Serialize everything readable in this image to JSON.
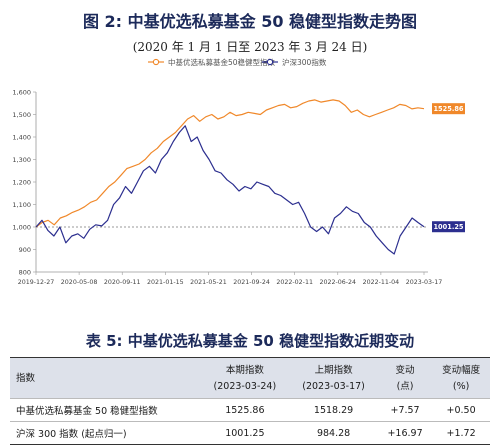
{
  "figure": {
    "title": "图 2:  中基优选私募基金 50 稳健型指数走势图",
    "subtitle": "(2020 年 1 月 1 日至 2023 年 3 月 24 日)"
  },
  "chart_data": {
    "type": "line",
    "legend_position": "top",
    "y_ticks": [
      "800",
      "900",
      "1,000",
      "1,100",
      "1,200",
      "1,300",
      "1,400",
      "1,500",
      "1,600"
    ],
    "ylim": [
      800,
      1600
    ],
    "x_ticks": [
      "2019-12-27",
      "2020-05-08",
      "2020-09-11",
      "2021-01-15",
      "2021-05-21",
      "2021-09-24",
      "2022-02-11",
      "2022-06-24",
      "2022-11-04",
      "2023-03-17"
    ],
    "baseline": 1000,
    "series": [
      {
        "name": "中基优选私募基金50稳健型指数",
        "color": "#f0882a",
        "end_label": "1525.86",
        "values": [
          1000,
          1020,
          1030,
          1010,
          1040,
          1050,
          1065,
          1075,
          1090,
          1110,
          1120,
          1150,
          1180,
          1200,
          1230,
          1260,
          1270,
          1280,
          1300,
          1330,
          1350,
          1380,
          1400,
          1420,
          1450,
          1480,
          1495,
          1470,
          1490,
          1500,
          1480,
          1490,
          1510,
          1495,
          1500,
          1510,
          1505,
          1500,
          1520,
          1530,
          1540,
          1545,
          1530,
          1535,
          1550,
          1560,
          1565,
          1555,
          1560,
          1565,
          1560,
          1540,
          1510,
          1520,
          1500,
          1490,
          1500,
          1510,
          1520,
          1530,
          1545,
          1540,
          1525,
          1530,
          1525.86
        ]
      },
      {
        "name": "沪深300指数",
        "color": "#2c2f8f",
        "end_label": "1001.25",
        "values": [
          1000,
          1030,
          985,
          960,
          1000,
          930,
          960,
          970,
          950,
          990,
          1010,
          1005,
          1030,
          1100,
          1130,
          1180,
          1150,
          1200,
          1250,
          1270,
          1240,
          1300,
          1330,
          1380,
          1420,
          1450,
          1380,
          1400,
          1340,
          1300,
          1250,
          1240,
          1210,
          1190,
          1160,
          1180,
          1170,
          1200,
          1190,
          1180,
          1150,
          1140,
          1120,
          1100,
          1110,
          1060,
          1000,
          980,
          1000,
          970,
          1040,
          1060,
          1090,
          1070,
          1060,
          1020,
          1000,
          960,
          930,
          900,
          880,
          960,
          1000,
          1040,
          1020,
          1001.25
        ]
      }
    ]
  },
  "table": {
    "title": "表 5:  中基优选私募基金 50 稳健型指数近期变动",
    "headers": [
      {
        "line1": "指数",
        "line2": ""
      },
      {
        "line1": "本期指数",
        "line2": "(2023-03-24)"
      },
      {
        "line1": "上期指数",
        "line2": "(2023-03-17)"
      },
      {
        "line1": "变动",
        "line2": "(点)"
      },
      {
        "line1": "变动幅度",
        "line2": "(%)"
      }
    ],
    "rows": [
      [
        "中基优选私募基金 50 稳健型指数",
        "1525.86",
        "1518.29",
        "+7.57",
        "+0.50"
      ],
      [
        "沪深 300 指数 (起点归一)",
        "1001.25",
        "984.28",
        "+16.97",
        "+1.72"
      ]
    ]
  }
}
